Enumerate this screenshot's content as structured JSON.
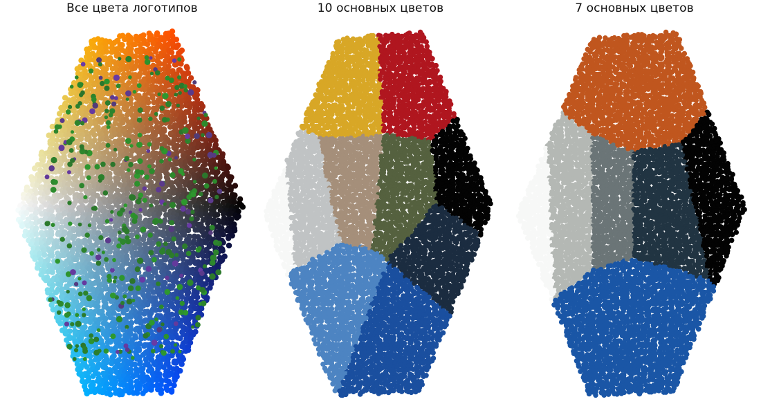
{
  "chart_data": [
    {
      "type": "scatter",
      "title": "Все цвета логотипов",
      "mode": "continuous",
      "colors": {
        "yellow": "#ffff00",
        "red": "#ff0000",
        "black": "#000000",
        "blue": "#0000ff",
        "cyan": "#00ffff",
        "white": "#ffffff",
        "green_points": "#2e9a2e",
        "purple_points": "#6a3aa8"
      }
    },
    {
      "type": "scatter",
      "title": "10 основных цветов",
      "mode": "clusters",
      "cluster_colors": [
        "#d8a726",
        "#b0161f",
        "#a58f7a",
        "#55613f",
        "#c0c3c4",
        "#030303",
        "#1b2c40",
        "#4d84c2",
        "#1a4f9f",
        "#f7f8f7"
      ]
    },
    {
      "type": "scatter",
      "title": "7 основных цветов",
      "mode": "clusters",
      "cluster_colors": [
        "#c0561e",
        "#b4b8b4",
        "#6b7577",
        "#213442",
        "#030303",
        "#1a56a6",
        "#f7f8f7"
      ]
    }
  ]
}
